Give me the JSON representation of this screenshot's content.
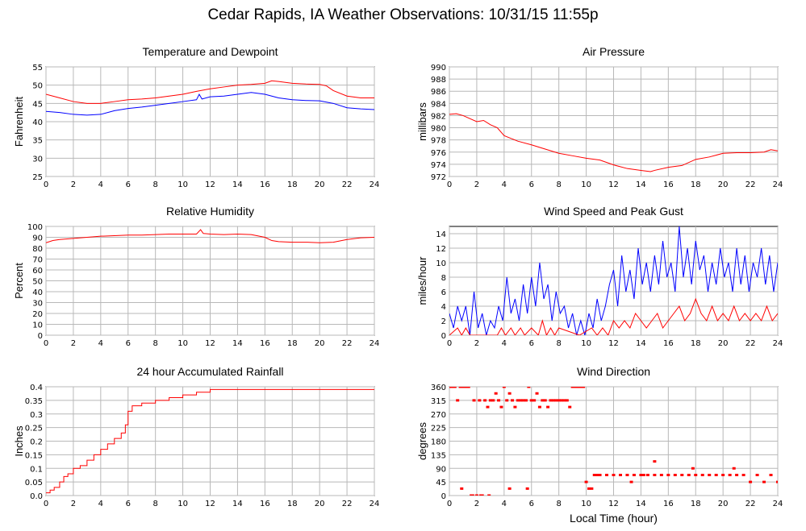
{
  "title": "Cedar Rapids, IA Weather Observations: 10/31/15 11:55p",
  "x_common_label": "Local Time (hour)",
  "chart_data": [
    {
      "id": "temp",
      "type": "line",
      "title": "Temperature and Dewpoint",
      "ylabel": "Fahrenheit",
      "xlim": [
        0,
        24
      ],
      "ylim": [
        25,
        55
      ],
      "xticks": [
        0,
        2,
        4,
        6,
        8,
        10,
        12,
        14,
        16,
        18,
        20,
        22,
        24
      ],
      "yticks": [
        25,
        30,
        35,
        40,
        45,
        50,
        55
      ],
      "grid": true,
      "series": [
        {
          "color": "#ff0000",
          "x": [
            0,
            1,
            2,
            3,
            4,
            5,
            6,
            7,
            8,
            9,
            10,
            11,
            12,
            13,
            14,
            15,
            16,
            16.5,
            17,
            18,
            19,
            20,
            20.5,
            21,
            22,
            23,
            24
          ],
          "y": [
            47.5,
            46.5,
            45.5,
            45,
            45,
            45.5,
            46,
            46.2,
            46.5,
            47,
            47.5,
            48.3,
            49,
            49.5,
            50,
            50.2,
            50.5,
            51.2,
            51,
            50.5,
            50.3,
            50.2,
            49.8,
            48.5,
            47,
            46.5,
            46.5
          ]
        },
        {
          "color": "#0000ff",
          "x": [
            0,
            1,
            2,
            3,
            4,
            5,
            6,
            7,
            8,
            9,
            10,
            11,
            11.2,
            11.4,
            12,
            13,
            14,
            15,
            16,
            17,
            18,
            19,
            20,
            21,
            22,
            23,
            24
          ],
          "y": [
            42.8,
            42.5,
            42,
            41.8,
            42,
            43,
            43.6,
            44,
            44.5,
            45,
            45.5,
            46,
            47.5,
            46.2,
            46.8,
            47,
            47.5,
            48,
            47.5,
            46.5,
            46,
            45.8,
            45.7,
            45,
            43.8,
            43.5,
            43.3
          ]
        }
      ]
    },
    {
      "id": "press",
      "type": "line",
      "title": "Air Pressure",
      "ylabel": "millibars",
      "xlim": [
        0,
        24
      ],
      "ylim": [
        972,
        990
      ],
      "xticks": [
        0,
        2,
        4,
        6,
        8,
        10,
        12,
        14,
        16,
        18,
        20,
        22,
        24
      ],
      "yticks": [
        972,
        974,
        976,
        978,
        980,
        982,
        984,
        986,
        988,
        990
      ],
      "grid": true,
      "series": [
        {
          "color": "#ff0000",
          "x": [
            0,
            0.5,
            1,
            2,
            2.5,
            3,
            3.5,
            4,
            5,
            6,
            7,
            8,
            9,
            10,
            11,
            12,
            13,
            14,
            14.7,
            15,
            16,
            17,
            18,
            19,
            20,
            21,
            22,
            23,
            23.5,
            24
          ],
          "y": [
            982.2,
            982.3,
            982,
            981,
            981.2,
            980.5,
            980,
            978.7,
            977.8,
            977.2,
            976.5,
            975.8,
            975.4,
            975,
            974.7,
            973.9,
            973.3,
            973,
            972.8,
            973,
            973.5,
            973.8,
            974.8,
            975.2,
            975.8,
            975.9,
            975.9,
            976,
            976.4,
            976.2
          ]
        }
      ]
    },
    {
      "id": "rh",
      "type": "line",
      "title": "Relative Humidity",
      "ylabel": "Percent",
      "xlim": [
        0,
        24
      ],
      "ylim": [
        0,
        100
      ],
      "xticks": [
        0,
        2,
        4,
        6,
        8,
        10,
        12,
        14,
        16,
        18,
        20,
        22,
        24
      ],
      "yticks": [
        0,
        10,
        20,
        30,
        40,
        50,
        60,
        70,
        80,
        90,
        100
      ],
      "grid": true,
      "series": [
        {
          "color": "#ff0000",
          "x": [
            0,
            0.5,
            1,
            2,
            3,
            4,
            5,
            6,
            7,
            8,
            9,
            10,
            11,
            11.3,
            11.5,
            12,
            13,
            14,
            15,
            16,
            16.5,
            17,
            18,
            19,
            20,
            21,
            22,
            23,
            24
          ],
          "y": [
            85,
            87,
            88,
            89,
            90,
            91,
            91.5,
            92,
            92,
            92.5,
            93,
            93,
            93,
            97,
            93.5,
            93,
            92.5,
            93,
            92.5,
            90,
            87,
            86,
            85.5,
            85.5,
            85,
            85.5,
            88,
            89.5,
            90
          ]
        }
      ]
    },
    {
      "id": "wind",
      "type": "line",
      "title": "Wind Speed and Peak Gust",
      "ylabel": "miles/hour",
      "xlim": [
        0,
        24
      ],
      "ylim": [
        0,
        15
      ],
      "xticks": [
        0,
        2,
        4,
        6,
        8,
        10,
        12,
        14,
        16,
        18,
        20,
        22,
        24
      ],
      "yticks": [
        0,
        2,
        4,
        6,
        8,
        10,
        12,
        14
      ],
      "grid": true,
      "series": [
        {
          "color": "#0000ff",
          "x": [
            0,
            0.3,
            0.6,
            0.9,
            1.2,
            1.5,
            1.8,
            2.1,
            2.4,
            2.7,
            3,
            3.3,
            3.6,
            3.9,
            4.2,
            4.5,
            4.8,
            5.1,
            5.4,
            5.7,
            6,
            6.3,
            6.6,
            6.9,
            7.2,
            7.5,
            7.8,
            8.1,
            8.4,
            8.7,
            9,
            9.3,
            9.6,
            9.9,
            10.2,
            10.5,
            10.8,
            11.1,
            11.4,
            11.7,
            12,
            12.3,
            12.6,
            12.9,
            13.2,
            13.5,
            13.8,
            14.1,
            14.4,
            14.7,
            15,
            15.3,
            15.6,
            15.9,
            16.2,
            16.5,
            16.8,
            17.1,
            17.4,
            17.7,
            18,
            18.3,
            18.6,
            18.9,
            19.2,
            19.5,
            19.8,
            20.1,
            20.4,
            20.7,
            21,
            21.3,
            21.6,
            21.9,
            22.2,
            22.5,
            22.8,
            23.1,
            23.4,
            23.7,
            24
          ],
          "y": [
            3,
            1,
            4,
            2,
            4,
            0,
            6,
            1,
            3,
            0,
            2,
            1,
            4,
            2,
            8,
            3,
            5,
            2,
            7,
            3,
            8,
            4,
            10,
            5,
            7,
            2,
            6,
            3,
            4,
            1,
            3,
            0,
            2,
            0,
            3,
            1,
            5,
            2,
            4,
            7,
            9,
            4,
            11,
            6,
            9,
            5,
            12,
            7,
            10,
            6,
            11,
            7,
            13,
            8,
            10,
            6,
            15,
            8,
            12,
            7,
            13,
            9,
            11,
            6,
            10,
            7,
            12,
            8,
            10,
            6,
            12,
            7,
            11,
            6,
            10,
            8,
            12,
            7,
            11,
            6,
            10
          ]
        },
        {
          "color": "#ff0000",
          "x": [
            0,
            0.6,
            0.9,
            1.2,
            1.5,
            3.5,
            3.8,
            4.1,
            4.5,
            4.8,
            5.2,
            5.5,
            6,
            6.5,
            6.8,
            7.1,
            7.4,
            7.7,
            8,
            9.5,
            10.4,
            10.8,
            11.2,
            11.6,
            12,
            12.4,
            12.8,
            13.2,
            13.6,
            14,
            14.4,
            14.8,
            15.2,
            15.6,
            16,
            16.4,
            16.8,
            17.2,
            17.6,
            18,
            18.4,
            18.8,
            19.2,
            19.6,
            20,
            20.4,
            20.8,
            21.2,
            21.6,
            22,
            22.4,
            22.8,
            23.2,
            23.6,
            24
          ],
          "y": [
            0,
            1,
            0,
            1,
            0,
            0,
            1,
            0,
            1,
            0,
            1,
            0,
            1,
            0,
            2,
            0,
            1,
            0,
            1,
            0,
            1,
            0,
            1,
            0,
            2,
            1,
            2,
            1,
            3,
            2,
            1,
            2,
            3,
            1,
            2,
            3,
            4,
            2,
            3,
            5,
            3,
            2,
            4,
            2,
            3,
            2,
            4,
            2,
            3,
            2,
            3,
            2,
            4,
            2,
            3
          ]
        }
      ]
    },
    {
      "id": "rain",
      "type": "line",
      "title": "24 hour Accumulated Rainfall",
      "ylabel": "Inches",
      "xlim": [
        0,
        24
      ],
      "ylim": [
        0,
        0.4
      ],
      "xticks": [
        0,
        2,
        4,
        6,
        8,
        10,
        12,
        14,
        16,
        18,
        20,
        22,
        24
      ],
      "yticks": [
        0,
        0.05,
        0.1,
        0.15,
        0.2,
        0.25,
        0.3,
        0.35,
        0.4
      ],
      "yticklabels": [
        "0.0",
        "0.05",
        "0.1",
        "0.15",
        "0.2",
        "0.25",
        "0.3",
        "0.35",
        "0.4"
      ],
      "grid": true,
      "series": [
        {
          "color": "#ff0000",
          "step": true,
          "x": [
            0,
            0.3,
            0.6,
            1,
            1.3,
            1.6,
            2,
            2.5,
            3,
            3.5,
            4,
            4.5,
            5,
            5.5,
            5.8,
            6,
            6.3,
            7,
            8,
            9,
            10,
            11,
            12,
            14,
            24
          ],
          "y": [
            0.01,
            0.02,
            0.03,
            0.05,
            0.07,
            0.08,
            0.1,
            0.11,
            0.13,
            0.15,
            0.17,
            0.19,
            0.21,
            0.23,
            0.26,
            0.31,
            0.33,
            0.34,
            0.35,
            0.36,
            0.37,
            0.38,
            0.39,
            0.39,
            0.39
          ]
        }
      ]
    },
    {
      "id": "wdir",
      "type": "scatter",
      "title": "Wind Direction",
      "ylabel": "degrees",
      "xlim": [
        0,
        24
      ],
      "ylim": [
        0,
        360
      ],
      "xticks": [
        0,
        2,
        4,
        6,
        8,
        10,
        12,
        14,
        16,
        18,
        20,
        22,
        24
      ],
      "yticks": [
        0,
        45,
        90,
        135,
        180,
        225,
        270,
        315,
        360
      ],
      "grid": true,
      "series": [
        {
          "color": "#ff0000",
          "x": [
            0,
            0.2,
            0.4,
            0.6,
            0.8,
            1,
            1.2,
            1.4,
            1.6,
            1.8,
            2,
            2.2,
            2.4,
            2.6,
            2.8,
            3,
            3.2,
            3.4,
            3.6,
            3.8,
            4,
            4.2,
            4.4,
            4.6,
            4.8,
            5,
            5.2,
            5.4,
            5.6,
            5.8,
            6,
            6.2,
            6.4,
            6.6,
            6.8,
            7,
            7.2,
            7.4,
            7.6,
            7.8,
            8,
            8.2,
            8.4,
            8.6,
            8.8,
            9,
            9.2,
            9.4,
            9.6,
            9.8,
            10,
            10.2,
            10.4,
            10.6,
            10.8,
            11,
            11.5,
            12,
            12.5,
            13,
            13.5,
            14,
            14.5,
            15,
            15.5,
            16,
            16.5,
            17,
            17.5,
            18,
            18.5,
            19,
            19.5,
            20,
            20.5,
            21,
            21.5,
            22,
            22.5,
            23,
            23.5,
            24,
            0.9,
            1.7,
            2.3,
            2.9,
            4.4,
            5.7,
            15,
            17.8,
            20.8,
            13.3,
            14.2
          ],
          "y": [
            360,
            360,
            360,
            315,
            360,
            360,
            360,
            360,
            0,
            315,
            0,
            315,
            0,
            315,
            293,
            315,
            315,
            338,
            315,
            293,
            360,
            315,
            338,
            315,
            293,
            315,
            315,
            315,
            315,
            360,
            315,
            315,
            338,
            293,
            315,
            315,
            293,
            315,
            315,
            315,
            315,
            315,
            315,
            315,
            293,
            360,
            360,
            360,
            360,
            360,
            45,
            23,
            23,
            68,
            68,
            68,
            68,
            68,
            68,
            68,
            68,
            68,
            68,
            68,
            68,
            68,
            68,
            68,
            68,
            68,
            68,
            68,
            68,
            68,
            68,
            68,
            68,
            45,
            68,
            45,
            68,
            45,
            23,
            0,
            0,
            0,
            23,
            23,
            113,
            90,
            90,
            45,
            68
          ]
        }
      ]
    }
  ]
}
